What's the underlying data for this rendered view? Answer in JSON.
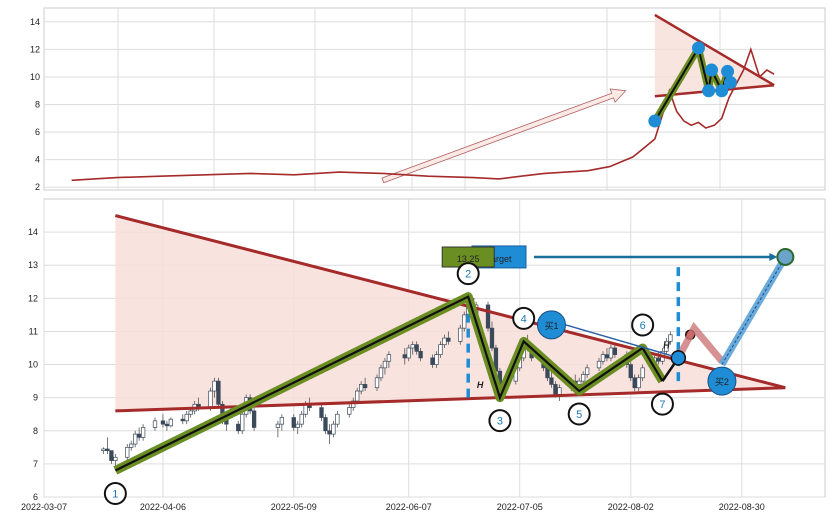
{
  "chart_data": [
    {
      "type": "line",
      "panel": "overview",
      "ylim": [
        1.8,
        15
      ],
      "yticks": [
        2,
        4,
        6,
        8,
        10,
        12,
        14
      ],
      "grid": true,
      "series": [
        {
          "color": "#a52a2a",
          "x": [
            "2021-05-20",
            "2021-06-20",
            "2021-07-20",
            "2021-08-20",
            "2021-09-20",
            "2021-10-20",
            "2021-11-20",
            "2021-12-20",
            "2022-01-20",
            "2022-02-20",
            "2022-03-10",
            "2022-03-25",
            "2022-04-10",
            "2022-04-25",
            "2022-05-10",
            "2022-05-25",
            "2022-06-10",
            "2022-06-25",
            "2022-07-01",
            "2022-07-05",
            "2022-07-10",
            "2022-07-15",
            "2022-07-20",
            "2022-07-25",
            "2022-07-30",
            "2022-08-05",
            "2022-08-10",
            "2022-08-15",
            "2022-08-20",
            "2022-08-25",
            "2022-08-30",
            "2022-09-05",
            "2022-09-10",
            "2022-09-15"
          ],
          "values": [
            2.5,
            2.7,
            2.8,
            2.9,
            3.0,
            2.9,
            3.1,
            3.0,
            2.8,
            2.7,
            2.6,
            2.8,
            3.0,
            3.1,
            3.2,
            3.5,
            4.2,
            5.5,
            7.5,
            9.0,
            7.5,
            6.8,
            6.5,
            6.7,
            6.3,
            6.5,
            7.0,
            8.5,
            9.5,
            10.5,
            12.0,
            10.0,
            10.5,
            10.2
          ]
        }
      ],
      "annotations": {
        "arrow": {
          "from": [
            "2021-12-20",
            2.5
          ],
          "to": [
            "2022-06-05",
            9.0
          ]
        },
        "triangle_top": [
          [
            "2022-06-25",
            14.5
          ],
          [
            "2022-09-15",
            9.4
          ]
        ],
        "triangle_bottom": [
          [
            "2022-06-25",
            8.6
          ],
          [
            "2022-09-15",
            9.4
          ]
        ],
        "pattern_points": [
          [
            "2022-06-25",
            6.8
          ],
          [
            "2022-07-25",
            12.1
          ],
          [
            "2022-08-01",
            9.0
          ],
          [
            "2022-08-03",
            10.5
          ],
          [
            "2022-08-10",
            9.0
          ],
          [
            "2022-08-14",
            10.4
          ],
          [
            "2022-08-16",
            9.6
          ]
        ]
      }
    },
    {
      "type": "candlestick",
      "panel": "detail",
      "xlim": [
        "2022-03-07",
        "2022-09-20"
      ],
      "ylim": [
        6,
        15
      ],
      "xticks": [
        "2022-03-07",
        "2022-04-06",
        "2022-05-09",
        "2022-06-07",
        "2022-07-05",
        "2022-08-02",
        "2022-08-30"
      ],
      "yticks": [
        6,
        7,
        8,
        9,
        10,
        11,
        12,
        13,
        14
      ],
      "grid": true,
      "candles": [
        [
          "2022-03-22",
          7.4,
          7.5,
          7.3,
          7.45
        ],
        [
          "2022-03-23",
          7.45,
          7.8,
          7.3,
          7.4
        ],
        [
          "2022-03-24",
          7.4,
          7.4,
          7.0,
          7.1
        ],
        [
          "2022-03-25",
          7.1,
          7.3,
          6.9,
          7.2
        ],
        [
          "2022-03-28",
          7.2,
          7.6,
          7.1,
          7.5
        ],
        [
          "2022-03-29",
          7.5,
          7.7,
          7.4,
          7.6
        ],
        [
          "2022-03-30",
          7.6,
          8.0,
          7.5,
          7.9
        ],
        [
          "2022-03-31",
          7.9,
          8.1,
          7.7,
          7.8
        ],
        [
          "2022-04-01",
          7.8,
          8.2,
          7.7,
          8.1
        ],
        [
          "2022-04-04",
          8.1,
          8.4,
          8.0,
          8.3
        ],
        [
          "2022-04-06",
          8.3,
          8.5,
          8.1,
          8.2
        ],
        [
          "2022-04-07",
          8.2,
          8.3,
          8.0,
          8.15
        ],
        [
          "2022-04-08",
          8.15,
          8.4,
          8.1,
          8.35
        ],
        [
          "2022-04-11",
          8.35,
          8.5,
          8.2,
          8.3
        ],
        [
          "2022-04-12",
          8.3,
          8.6,
          8.2,
          8.5
        ],
        [
          "2022-04-13",
          8.5,
          8.7,
          8.4,
          8.6
        ],
        [
          "2022-04-14",
          8.6,
          8.9,
          8.5,
          8.8
        ],
        [
          "2022-04-15",
          8.8,
          9.0,
          8.6,
          8.7
        ],
        [
          "2022-04-18",
          8.7,
          9.3,
          8.6,
          9.2
        ],
        [
          "2022-04-19",
          9.2,
          9.6,
          9.0,
          9.5
        ],
        [
          "2022-04-20",
          9.5,
          9.6,
          8.7,
          8.8
        ],
        [
          "2022-04-21",
          8.8,
          8.9,
          8.2,
          8.4
        ],
        [
          "2022-04-22",
          8.4,
          8.6,
          8.0,
          8.2
        ],
        [
          "2022-04-25",
          8.2,
          8.3,
          7.9,
          8.0
        ],
        [
          "2022-04-26",
          8.0,
          8.6,
          7.9,
          8.5
        ],
        [
          "2022-04-27",
          8.5,
          9.1,
          8.4,
          9.0
        ],
        [
          "2022-04-28",
          9.0,
          9.1,
          8.5,
          8.6
        ],
        [
          "2022-04-29",
          8.6,
          8.7,
          8.0,
          8.1
        ],
        [
          "2022-05-05",
          8.1,
          8.3,
          7.8,
          8.2
        ],
        [
          "2022-05-06",
          8.2,
          8.5,
          8.0,
          8.4
        ],
        [
          "2022-05-09",
          8.4,
          8.5,
          8.0,
          8.1
        ],
        [
          "2022-05-10",
          8.1,
          8.3,
          7.9,
          8.2
        ],
        [
          "2022-05-11",
          8.2,
          8.6,
          8.1,
          8.5
        ],
        [
          "2022-05-12",
          8.5,
          8.9,
          8.4,
          8.8
        ],
        [
          "2022-05-13",
          8.8,
          9.0,
          8.6,
          8.7
        ],
        [
          "2022-05-16",
          8.7,
          8.8,
          8.3,
          8.4
        ],
        [
          "2022-05-17",
          8.4,
          8.5,
          7.9,
          8.0
        ],
        [
          "2022-05-18",
          8.0,
          8.2,
          7.6,
          7.9
        ],
        [
          "2022-05-19",
          7.9,
          8.3,
          7.8,
          8.2
        ],
        [
          "2022-05-20",
          8.2,
          8.6,
          8.1,
          8.5
        ],
        [
          "2022-05-23",
          8.5,
          8.8,
          8.4,
          8.7
        ],
        [
          "2022-05-24",
          8.7,
          9.0,
          8.6,
          8.9
        ],
        [
          "2022-05-25",
          8.9,
          9.3,
          8.8,
          9.2
        ],
        [
          "2022-05-26",
          9.2,
          9.5,
          9.1,
          9.4
        ],
        [
          "2022-05-27",
          9.4,
          9.6,
          9.2,
          9.3
        ],
        [
          "2022-05-30",
          9.3,
          9.7,
          9.2,
          9.6
        ],
        [
          "2022-05-31",
          9.6,
          10.0,
          9.5,
          9.9
        ],
        [
          "2022-06-01",
          9.9,
          10.2,
          9.7,
          10.1
        ],
        [
          "2022-06-02",
          10.1,
          10.4,
          9.9,
          10.3
        ],
        [
          "2022-06-06",
          10.3,
          10.5,
          10.0,
          10.2
        ],
        [
          "2022-06-07",
          10.2,
          10.6,
          10.1,
          10.5
        ],
        [
          "2022-06-08",
          10.5,
          10.7,
          10.3,
          10.6
        ],
        [
          "2022-06-09",
          10.6,
          10.7,
          10.3,
          10.4
        ],
        [
          "2022-06-10",
          10.4,
          10.5,
          10.1,
          10.2
        ],
        [
          "2022-06-13",
          10.2,
          10.3,
          9.9,
          10.0
        ],
        [
          "2022-06-14",
          10.0,
          10.4,
          9.9,
          10.3
        ],
        [
          "2022-06-15",
          10.3,
          10.7,
          10.2,
          10.6
        ],
        [
          "2022-06-16",
          10.6,
          10.9,
          10.5,
          10.8
        ],
        [
          "2022-06-17",
          10.8,
          11.0,
          10.6,
          10.7
        ],
        [
          "2022-06-20",
          10.7,
          11.2,
          10.6,
          11.1
        ],
        [
          "2022-06-21",
          11.1,
          11.6,
          11.0,
          11.5
        ],
        [
          "2022-06-22",
          11.5,
          12.2,
          11.4,
          12.0
        ],
        [
          "2022-06-23",
          12.0,
          12.1,
          11.4,
          11.5
        ],
        [
          "2022-06-24",
          11.5,
          11.9,
          11.3,
          11.8
        ],
        [
          "2022-06-27",
          11.8,
          11.9,
          11.0,
          11.1
        ],
        [
          "2022-06-28",
          11.1,
          11.3,
          10.4,
          10.5
        ],
        [
          "2022-06-29",
          10.5,
          10.6,
          9.6,
          9.8
        ],
        [
          "2022-06-30",
          9.8,
          9.9,
          9.1,
          9.2
        ],
        [
          "2022-07-01",
          9.2,
          9.6,
          9.0,
          9.5
        ],
        [
          "2022-07-04",
          9.5,
          10.0,
          9.4,
          9.9
        ],
        [
          "2022-07-05",
          9.9,
          10.3,
          9.8,
          10.2
        ],
        [
          "2022-07-06",
          10.2,
          10.8,
          10.1,
          10.7
        ],
        [
          "2022-07-07",
          10.7,
          10.9,
          10.4,
          10.5
        ],
        [
          "2022-07-08",
          10.5,
          10.6,
          10.1,
          10.2
        ],
        [
          "2022-07-11",
          10.2,
          10.3,
          9.8,
          9.9
        ],
        [
          "2022-07-12",
          9.9,
          10.0,
          9.5,
          9.6
        ],
        [
          "2022-07-13",
          9.6,
          9.8,
          9.3,
          9.4
        ],
        [
          "2022-07-14",
          9.4,
          9.5,
          9.0,
          9.1
        ],
        [
          "2022-07-15",
          9.1,
          9.4,
          8.9,
          9.3
        ],
        [
          "2022-07-18",
          9.3,
          9.6,
          9.2,
          9.5
        ],
        [
          "2022-07-19",
          9.5,
          9.7,
          9.3,
          9.4
        ],
        [
          "2022-07-20",
          9.4,
          9.6,
          9.2,
          9.5
        ],
        [
          "2022-07-21",
          9.5,
          9.8,
          9.4,
          9.7
        ],
        [
          "2022-07-22",
          9.7,
          10.0,
          9.6,
          9.9
        ],
        [
          "2022-07-25",
          9.9,
          10.2,
          9.8,
          10.1
        ],
        [
          "2022-07-26",
          10.1,
          10.4,
          10.0,
          10.3
        ],
        [
          "2022-07-27",
          10.3,
          10.5,
          10.1,
          10.2
        ],
        [
          "2022-07-28",
          10.2,
          10.6,
          10.1,
          10.5
        ],
        [
          "2022-07-29",
          10.5,
          10.6,
          10.2,
          10.3
        ],
        [
          "2022-08-01",
          10.3,
          10.4,
          9.9,
          10.0
        ],
        [
          "2022-08-02",
          10.0,
          10.1,
          9.5,
          9.6
        ],
        [
          "2022-08-03",
          9.6,
          9.7,
          9.2,
          9.3
        ],
        [
          "2022-08-04",
          9.3,
          9.7,
          9.2,
          9.6
        ],
        [
          "2022-08-05",
          9.6,
          10.0,
          9.5,
          9.9
        ],
        [
          "2022-08-08",
          9.9,
          10.3,
          9.8,
          10.2
        ],
        [
          "2022-08-09",
          10.2,
          10.4,
          10.0,
          10.1
        ],
        [
          "2022-08-10",
          10.1,
          10.5,
          10.0,
          10.4
        ],
        [
          "2022-08-11",
          10.4,
          10.8,
          10.3,
          10.7
        ],
        [
          "2022-08-12",
          10.7,
          11.0,
          10.6,
          10.9
        ]
      ],
      "pattern_points": [
        {
          "label": "1",
          "date": "2022-03-25",
          "value": 6.8
        },
        {
          "label": "2",
          "date": "2022-06-22",
          "value": 12.05
        },
        {
          "label": "3",
          "date": "2022-06-30",
          "value": 9.0
        },
        {
          "label": "4",
          "date": "2022-07-06",
          "value": 10.7
        },
        {
          "label": "5",
          "date": "2022-07-20",
          "value": 9.2
        },
        {
          "label": "6",
          "date": "2022-08-05",
          "value": 10.5
        },
        {
          "label": "7",
          "date": "2022-08-10",
          "value": 9.5
        }
      ],
      "triangle_top": [
        [
          "2022-03-25",
          14.5
        ],
        [
          "2022-09-10",
          9.3
        ]
      ],
      "triangle_bottom": [
        [
          "2022-03-25",
          8.6
        ],
        [
          "2022-09-10",
          9.3
        ]
      ],
      "breakout_point": [
        "2022-08-14",
        10.2
      ],
      "target": {
        "label": "Target",
        "value": 13.25,
        "date": "2022-09-10"
      },
      "value_label": "13.25",
      "buy_markers": [
        {
          "label": "买1",
          "date": "2022-07-13",
          "value": 11.2
        },
        {
          "label": "买2",
          "date": "2022-08-25",
          "value": 9.5
        }
      ],
      "h_markers": [
        {
          "label": "H",
          "date": "2022-06-25",
          "value": 9.5
        },
        {
          "label": "H",
          "date": "2022-08-11",
          "value": 10.7
        }
      ],
      "dashed_lines": [
        {
          "date": "2022-06-22",
          "from": 9.0,
          "to": 12.05
        },
        {
          "date": "2022-08-14",
          "from": 9.5,
          "to": 13.0
        }
      ]
    }
  ]
}
